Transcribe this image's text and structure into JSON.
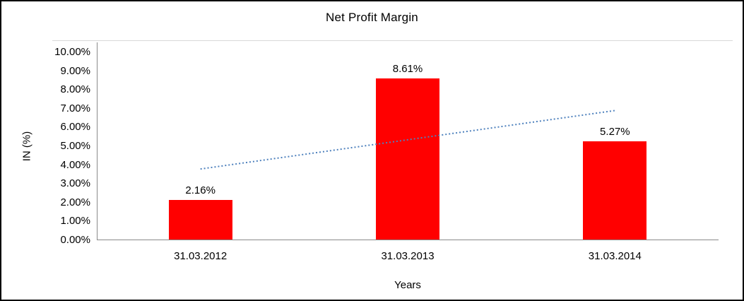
{
  "chart_data": {
    "type": "bar",
    "title": "Net Profit Margin",
    "xlabel": "Years",
    "ylabel": "IN (%)",
    "categories": [
      "31.03.2012",
      "31.03.2013",
      "31.03.2014"
    ],
    "values": [
      2.16,
      8.61,
      5.27
    ],
    "data_labels": [
      "2.16%",
      "8.61%",
      "5.27%"
    ],
    "ylim": [
      0,
      10
    ],
    "ytick_step": 1,
    "ytick_labels": [
      "0.00%",
      "1.00%",
      "2.00%",
      "3.00%",
      "4.00%",
      "5.00%",
      "6.00%",
      "7.00%",
      "8.00%",
      "9.00%",
      "10.00%"
    ],
    "grid": false,
    "legend": false,
    "bar_color": "#FF0000",
    "axis_color": "#898989",
    "trendline": {
      "type": "linear",
      "style": "dotted",
      "color": "#4E81BD",
      "start_value": 3.79,
      "end_value": 6.9
    }
  }
}
